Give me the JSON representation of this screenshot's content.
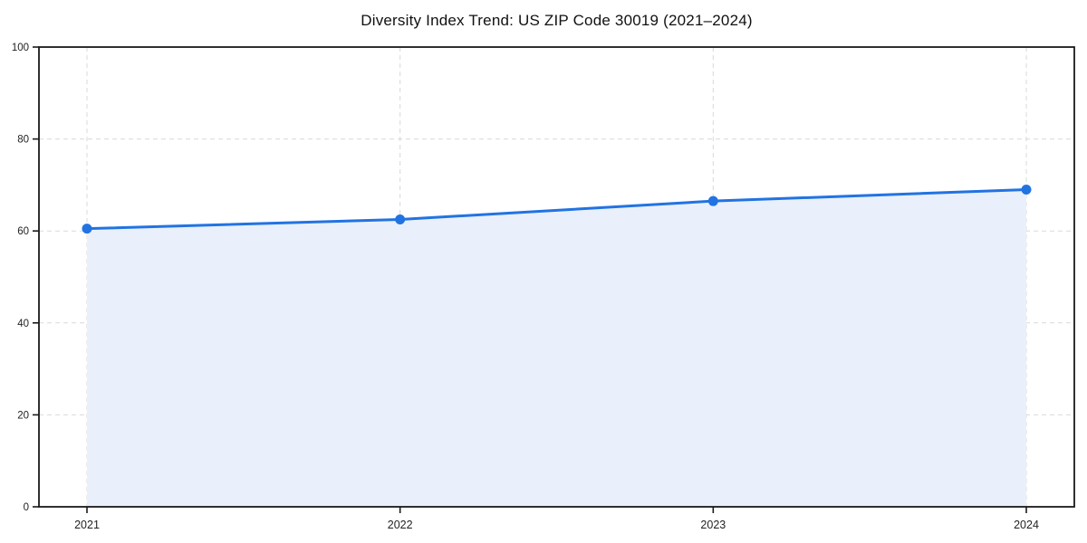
{
  "title": "Diversity Index Trend: US ZIP Code 30019 (2021–2024)",
  "chart_data": {
    "type": "area",
    "title": "Diversity Index Trend: US ZIP Code 30019 (2021–2024)",
    "categories": [
      "2021",
      "2022",
      "2023",
      "2024"
    ],
    "values": [
      60.5,
      62.5,
      66.5,
      69.0
    ],
    "series_name": "Diversity Index",
    "xlabel": "",
    "ylabel": "",
    "ylim": [
      0,
      100
    ],
    "yticks": [
      0,
      20,
      40,
      60,
      80,
      100
    ],
    "grid": "dashed-both-axes",
    "legend": "none",
    "marker": "circle",
    "colors": {
      "line": "#2273e2",
      "marker": "#2273e2",
      "fill": "#e9f0fb",
      "grid": "#d9d9d9",
      "axis": "#1a1a1a",
      "tick_text": "#222222",
      "background": "#ffffff"
    }
  }
}
